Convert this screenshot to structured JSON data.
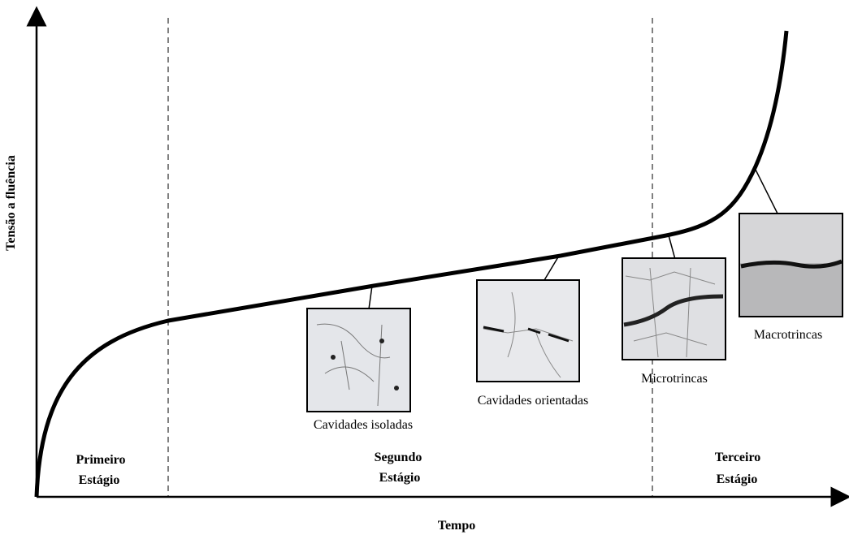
{
  "axes": {
    "y_label": "Tensão a fluência",
    "x_label": "Tempo"
  },
  "stages": [
    {
      "lines": [
        "Primeiro",
        "Estágio"
      ]
    },
    {
      "lines": [
        "Segundo",
        "Estágio"
      ]
    },
    {
      "lines": [
        "Terceiro",
        "Estágio"
      ]
    }
  ],
  "micrographs": [
    {
      "caption": "Cavidades isoladas"
    },
    {
      "caption": "Cavidades orientadas"
    },
    {
      "caption": "Microtrincas"
    },
    {
      "caption": "Macrotrincas"
    }
  ]
}
